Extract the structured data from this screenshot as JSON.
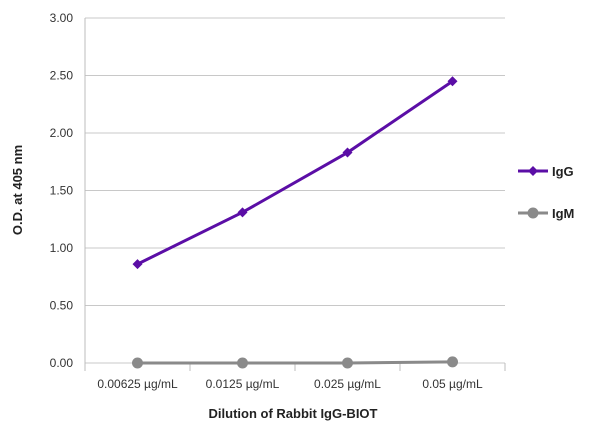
{
  "chart_data": {
    "type": "line",
    "title": "",
    "xlabel": "Dilution of Rabbit IgG-BIOT",
    "ylabel": "O.D. at 405 nm",
    "categories": [
      "0.00625 µg/mL",
      "0.0125 µg/mL",
      "0.025 µg/mL",
      "0.05 µg/mL"
    ],
    "ylim": [
      0,
      3
    ],
    "yticks": [
      "0.00",
      "0.50",
      "1.00",
      "1.50",
      "2.00",
      "2.50",
      "3.00"
    ],
    "grid": true,
    "legend_position": "right",
    "series": [
      {
        "name": "IgG",
        "values": [
          0.86,
          1.31,
          1.83,
          2.45
        ],
        "color": "#5b0ea6",
        "marker": "diamond"
      },
      {
        "name": "IgM",
        "values": [
          0.0,
          0.0,
          0.0,
          0.01
        ],
        "color": "#8a8a8a",
        "marker": "circle"
      }
    ]
  }
}
